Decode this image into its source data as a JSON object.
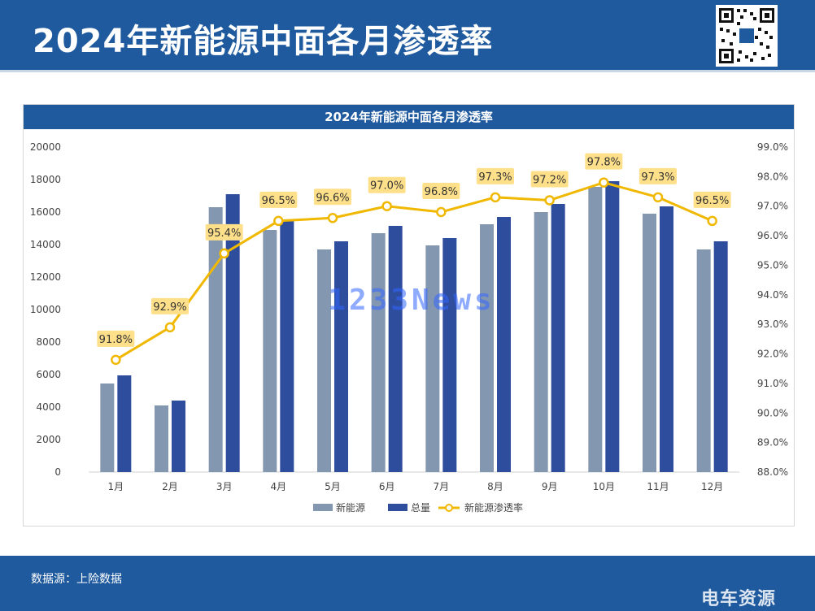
{
  "header": {
    "title": "2024年新能源中面各月渗透率"
  },
  "footer": {
    "source": "数据源：上险数据",
    "logo": "电车资源"
  },
  "watermark": {
    "text": "1233News"
  },
  "colors": {
    "brand": "#1f5a9e",
    "bar_new_energy": "#8497b0",
    "bar_total": "#2e4d9d",
    "line": "#f0b800",
    "label_bg": "#ffe08a"
  },
  "chart_data": {
    "type": "bar",
    "title": "2024年新能源中面各月渗透率",
    "categories": [
      "1月",
      "2月",
      "3月",
      "4月",
      "5月",
      "6月",
      "7月",
      "8月",
      "9月",
      "10月",
      "11月",
      "12月"
    ],
    "series": [
      {
        "name": "新能源",
        "type": "bar",
        "axis": "left",
        "values": [
          5450,
          4100,
          16300,
          14900,
          13700,
          14700,
          13950,
          15250,
          16000,
          17550,
          15900,
          13700
        ]
      },
      {
        "name": "总量",
        "type": "bar",
        "axis": "left",
        "values": [
          5950,
          4400,
          17100,
          15450,
          14200,
          15150,
          14400,
          15700,
          16500,
          17900,
          16350,
          14200
        ]
      },
      {
        "name": "新能源渗透率",
        "type": "line",
        "axis": "right",
        "values": [
          91.8,
          92.9,
          95.4,
          96.5,
          96.6,
          97.0,
          96.8,
          97.3,
          97.2,
          97.8,
          97.3,
          96.5
        ],
        "labels": [
          "91.8%",
          "92.9%",
          "95.4%",
          "96.5%",
          "96.6%",
          "97.0%",
          "96.8%",
          "97.3%",
          "97.2%",
          "97.8%",
          "97.3%",
          "96.5%"
        ]
      }
    ],
    "y_left": {
      "ylim": [
        0,
        20000
      ],
      "ticks": [
        "0",
        "2000",
        "4000",
        "6000",
        "8000",
        "10000",
        "12000",
        "14000",
        "16000",
        "18000",
        "20000"
      ]
    },
    "y_right": {
      "ylim": [
        88.0,
        99.0
      ],
      "ticks": [
        "88.0%",
        "89.0%",
        "90.0%",
        "91.0%",
        "92.0%",
        "93.0%",
        "94.0%",
        "95.0%",
        "96.0%",
        "97.0%",
        "98.0%",
        "99.0%"
      ]
    },
    "grid": false,
    "legend": "bottom-center"
  }
}
